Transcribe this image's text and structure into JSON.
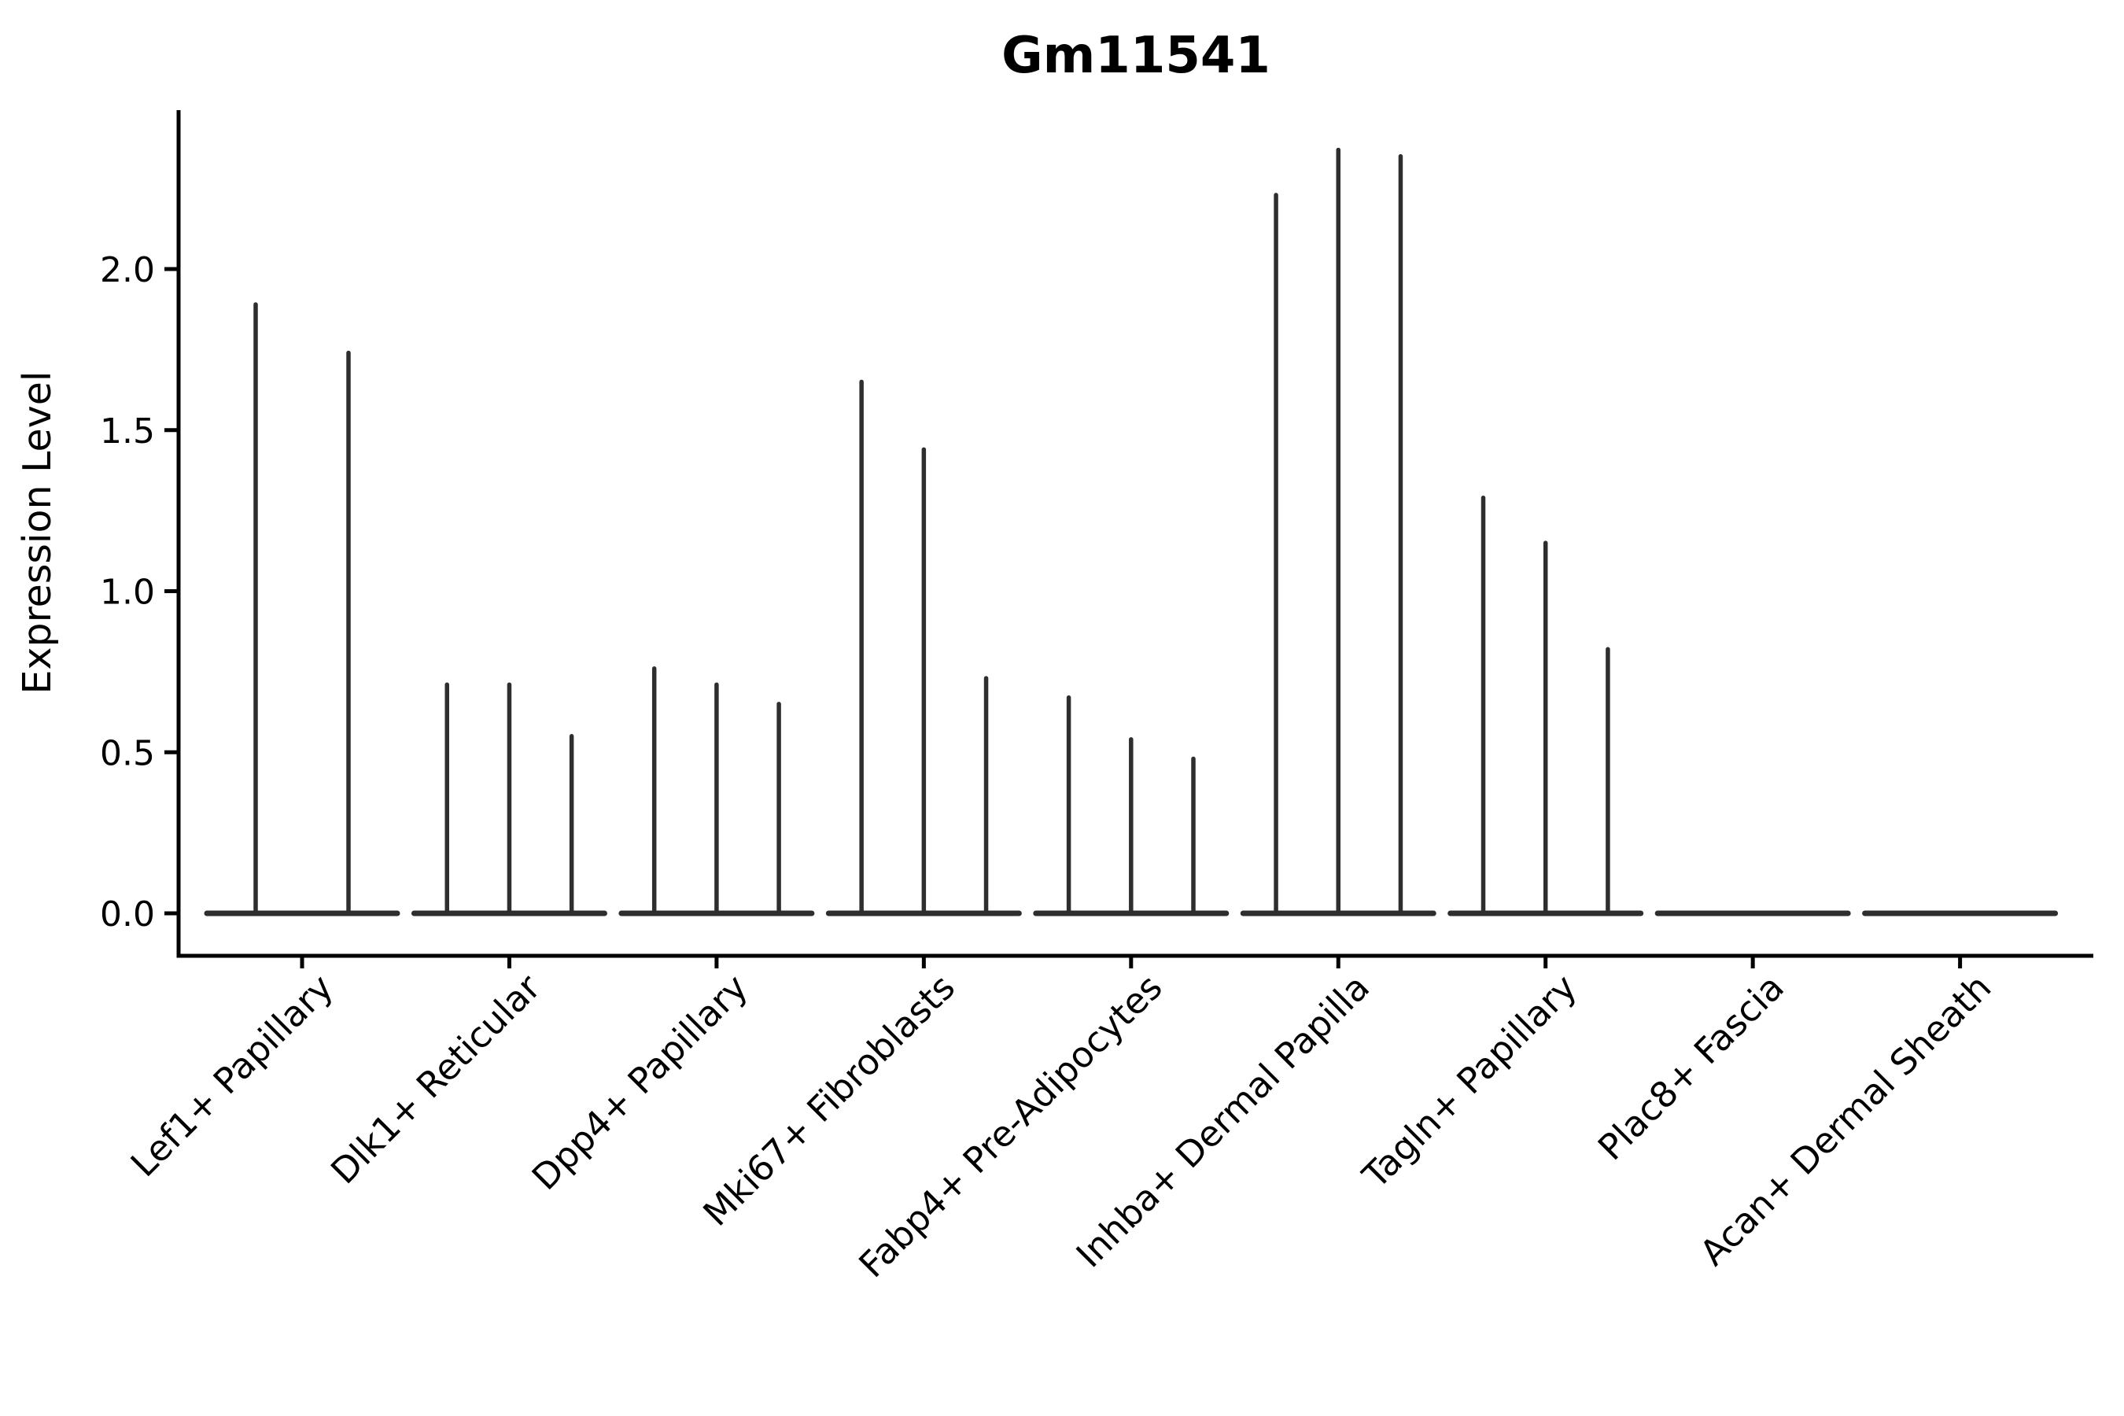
{
  "colors": {
    "background": "#ffffff",
    "axis_ink": "#000000",
    "text_ink": "#000000",
    "violin_ink": "#2e2e2e"
  },
  "chart_data": {
    "type": "violin",
    "title": "Gm11541",
    "xlabel": "",
    "ylabel": "Expression Level",
    "ylim": [
      -0.13,
      2.49
    ],
    "yticks": [
      0.0,
      0.5,
      1.0,
      1.5,
      2.0
    ],
    "ytick_labels": [
      "0.0",
      "0.5",
      "1.0",
      "1.5",
      "2.0"
    ],
    "grid": false,
    "legend": "none",
    "categories": [
      "Lef1+ Papillary",
      "Dlk1+ Reticular",
      "Dpp4+ Papillary",
      "Mki67+ Fibroblasts",
      "Fabp4+ Pre-Adipocytes",
      "Inhba+ Dermal Papilla",
      "Tagln+ Papillary",
      "Plac8+ Fascia",
      "Acan+ Dermal Sheath"
    ],
    "violin_body_value": 0.0,
    "series": [
      {
        "category": "Lef1+ Papillary",
        "violin_maxima": [
          1.89,
          1.74
        ]
      },
      {
        "category": "Dlk1+ Reticular",
        "violin_maxima": [
          0.71,
          0.71,
          0.55
        ]
      },
      {
        "category": "Dpp4+ Papillary",
        "violin_maxima": [
          0.76,
          0.71,
          0.65
        ]
      },
      {
        "category": "Mki67+ Fibroblasts",
        "violin_maxima": [
          1.65,
          1.44,
          0.73
        ]
      },
      {
        "category": "Fabp4+ Pre-Adipocytes",
        "violin_maxima": [
          0.67,
          0.54,
          0.48
        ]
      },
      {
        "category": "Inhba+ Dermal Papilla",
        "violin_maxima": [
          2.23,
          2.37,
          2.35
        ]
      },
      {
        "category": "Tagln+ Papillary",
        "violin_maxima": [
          1.29,
          1.15,
          0.82
        ]
      },
      {
        "category": "Plac8+ Fascia",
        "violin_maxima": []
      },
      {
        "category": "Acan+ Dermal Sheath",
        "violin_maxima": []
      }
    ]
  }
}
